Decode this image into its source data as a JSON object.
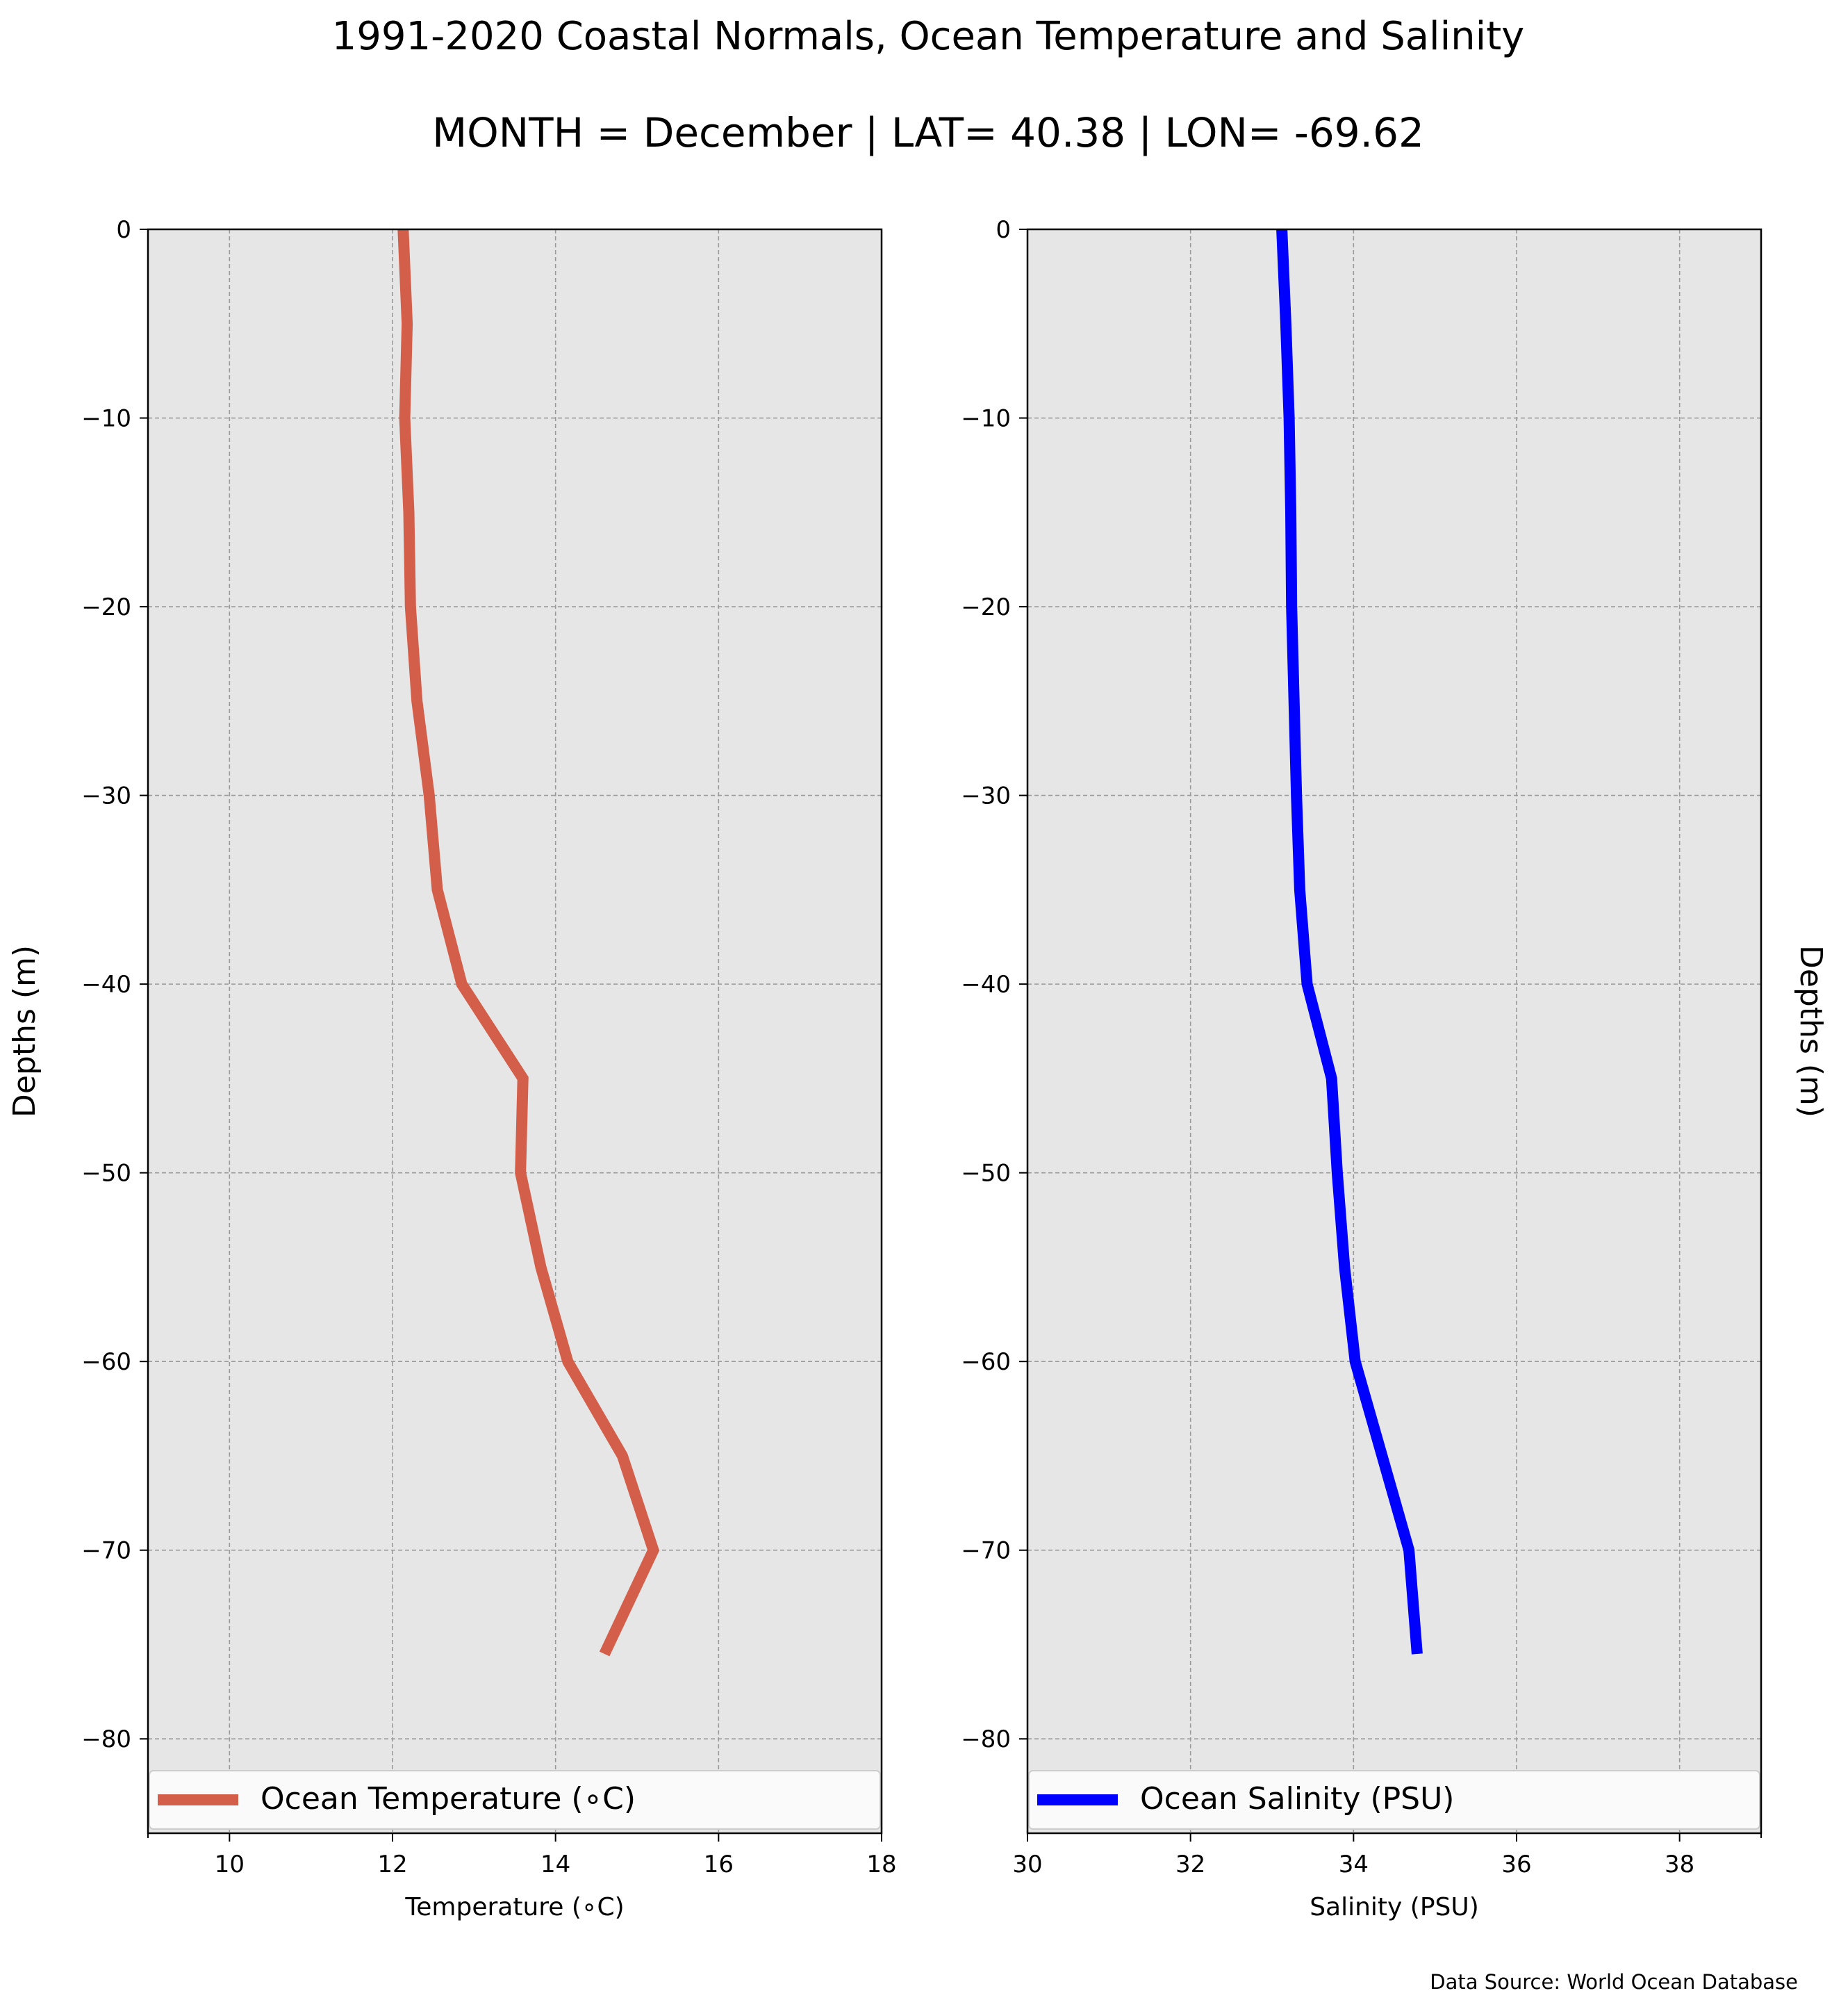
{
  "figure": {
    "title": "1991-2020 Coastal Normals, Ocean Temperature and Salinity",
    "subtitle": "MONTH = December | LAT= 40.38 | LON= -69.62",
    "source_note": "Data Source: World Ocean Database"
  },
  "chart_data": [
    {
      "type": "line",
      "orientation": "profile (x = value, y = depth)",
      "title": "",
      "xlabel": "Temperature (∘C)",
      "ylabel": "Depths (m)",
      "xlim": [
        9,
        18
      ],
      "ylim": [
        -85,
        0
      ],
      "x_ticks": [
        10,
        12,
        14,
        16,
        18
      ],
      "y_ticks": [
        0,
        -10,
        -20,
        -30,
        -40,
        -50,
        -60,
        -70,
        -80
      ],
      "grid": true,
      "legend_position": "bottom",
      "series": [
        {
          "name": "Ocean Temperature (∘C)",
          "color": "#d35f4b",
          "points": [
            {
              "x": 12.13,
              "y": 0
            },
            {
              "x": 12.18,
              "y": -5
            },
            {
              "x": 12.15,
              "y": -10
            },
            {
              "x": 12.2,
              "y": -15
            },
            {
              "x": 12.22,
              "y": -20
            },
            {
              "x": 12.3,
              "y": -25
            },
            {
              "x": 12.45,
              "y": -30
            },
            {
              "x": 12.55,
              "y": -35
            },
            {
              "x": 12.85,
              "y": -40
            },
            {
              "x": 13.6,
              "y": -45
            },
            {
              "x": 13.57,
              "y": -50
            },
            {
              "x": 13.82,
              "y": -55
            },
            {
              "x": 14.15,
              "y": -60
            },
            {
              "x": 14.82,
              "y": -65
            },
            {
              "x": 15.2,
              "y": -70
            },
            {
              "x": 14.6,
              "y": -75.5
            }
          ]
        }
      ]
    },
    {
      "type": "line",
      "orientation": "profile (x = value, y = depth)",
      "title": "",
      "xlabel": "Salinity (PSU)",
      "ylabel": "Depths (m)",
      "xlim": [
        30,
        39
      ],
      "ylim": [
        -85,
        0
      ],
      "x_ticks": [
        30,
        32,
        34,
        36,
        38
      ],
      "y_ticks": [
        0,
        -10,
        -20,
        -30,
        -40,
        -50,
        -60,
        -70,
        -80
      ],
      "grid": true,
      "legend_position": "bottom",
      "series": [
        {
          "name": "Ocean Salinity (PSU)",
          "color": "#0000ff",
          "points": [
            {
              "x": 33.12,
              "y": 0
            },
            {
              "x": 33.17,
              "y": -5
            },
            {
              "x": 33.21,
              "y": -10
            },
            {
              "x": 33.23,
              "y": -15
            },
            {
              "x": 33.24,
              "y": -20
            },
            {
              "x": 33.27,
              "y": -25
            },
            {
              "x": 33.3,
              "y": -30
            },
            {
              "x": 33.34,
              "y": -35
            },
            {
              "x": 33.43,
              "y": -40
            },
            {
              "x": 33.73,
              "y": -45
            },
            {
              "x": 33.8,
              "y": -50
            },
            {
              "x": 33.89,
              "y": -55
            },
            {
              "x": 34.02,
              "y": -60
            },
            {
              "x": 34.35,
              "y": -65
            },
            {
              "x": 34.68,
              "y": -70
            },
            {
              "x": 34.78,
              "y": -75.5
            }
          ]
        }
      ]
    }
  ]
}
